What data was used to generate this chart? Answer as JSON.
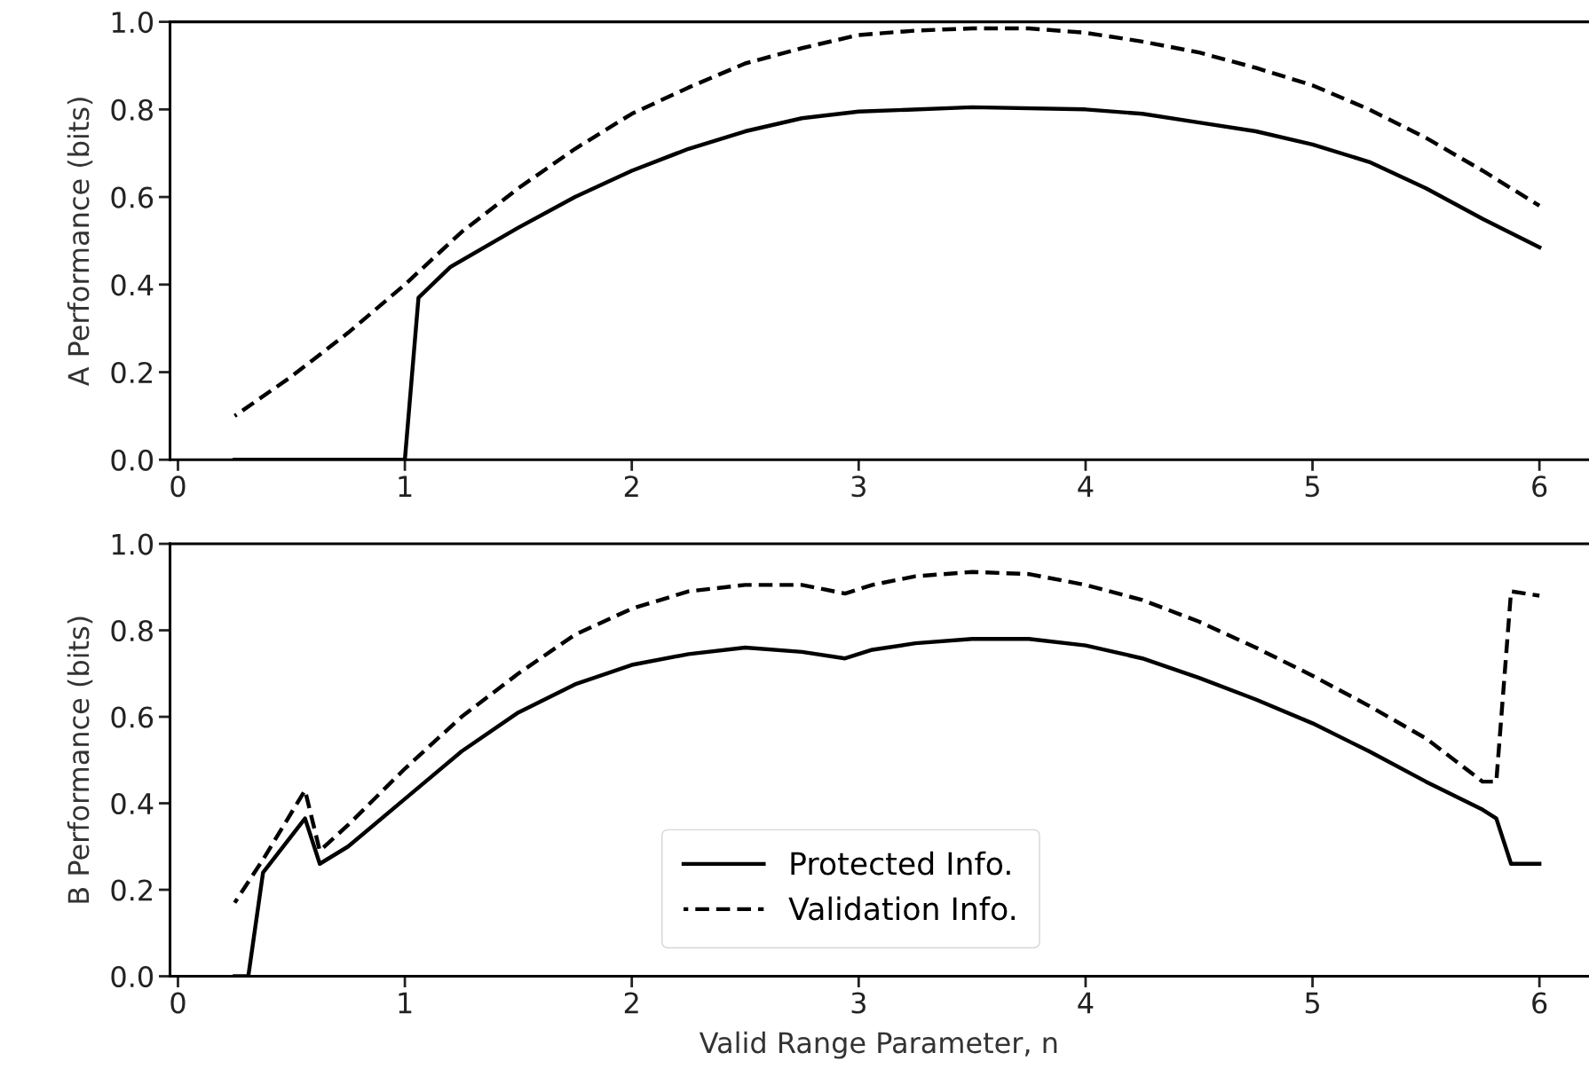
{
  "chart_data": [
    {
      "type": "line",
      "ylabel": "A Performance (bits)",
      "xlim": [
        -0.035,
        6.215
      ],
      "ylim": [
        0,
        1.0
      ],
      "xticks": [
        0,
        1,
        2,
        3,
        4,
        5,
        6
      ],
      "yticks": [
        {
          "value": 0,
          "label": "0.0"
        },
        {
          "value": 0.2,
          "label": "0.2"
        },
        {
          "value": 0.4,
          "label": "0.4"
        },
        {
          "value": 0.6,
          "label": "0.6"
        },
        {
          "value": 0.8,
          "label": "0.8"
        },
        {
          "value": 1.0,
          "label": "1.0"
        }
      ],
      "grid": false,
      "legend": false,
      "series": [
        {
          "color": "#000000",
          "line_style": "solid",
          "x": [
            0.25,
            0.5,
            0.75,
            1.0,
            1.06,
            1.2,
            1.5,
            1.75,
            2.0,
            2.25,
            2.5,
            2.75,
            3.0,
            3.5,
            4.0,
            4.25,
            4.5,
            4.75,
            5.0,
            5.25,
            5.5,
            5.75,
            6.0
          ],
          "values": [
            0,
            0,
            0,
            0,
            0.37,
            0.44,
            0.53,
            0.6,
            0.66,
            0.71,
            0.75,
            0.78,
            0.795,
            0.805,
            0.8,
            0.79,
            0.77,
            0.75,
            0.72,
            0.68,
            0.62,
            0.55,
            0.485
          ]
        },
        {
          "color": "#000000",
          "line_style": "dashed",
          "x": [
            0.25,
            0.5,
            0.75,
            1.0,
            1.25,
            1.5,
            1.75,
            2.0,
            2.25,
            2.5,
            2.75,
            3.0,
            3.25,
            3.5,
            3.75,
            4.0,
            4.25,
            4.5,
            4.75,
            5.0,
            5.25,
            5.5,
            5.75,
            6.0
          ],
          "values": [
            0.1,
            0.19,
            0.29,
            0.4,
            0.52,
            0.62,
            0.71,
            0.79,
            0.85,
            0.905,
            0.94,
            0.97,
            0.98,
            0.985,
            0.985,
            0.975,
            0.955,
            0.93,
            0.895,
            0.855,
            0.8,
            0.735,
            0.66,
            0.58
          ]
        }
      ]
    },
    {
      "type": "line",
      "ylabel": "B Performance (bits)",
      "xlabel": "Valid Range Parameter, n",
      "xlim": [
        -0.035,
        6.215
      ],
      "ylim": [
        0,
        1.0
      ],
      "xticks": [
        0,
        1,
        2,
        3,
        4,
        5,
        6
      ],
      "yticks": [
        {
          "value": 0,
          "label": "0.0"
        },
        {
          "value": 0.2,
          "label": "0.2"
        },
        {
          "value": 0.4,
          "label": "0.4"
        },
        {
          "value": 0.6,
          "label": "0.6"
        },
        {
          "value": 0.8,
          "label": "0.8"
        },
        {
          "value": 1.0,
          "label": "1.0"
        }
      ],
      "grid": false,
      "legend": "bottom",
      "series": [
        {
          "name": "Protected Info.",
          "color": "#000000",
          "line_style": "solid",
          "x": [
            0.25,
            0.31,
            0.375,
            0.56,
            0.625,
            0.75,
            1.0,
            1.25,
            1.5,
            1.75,
            2.0,
            2.25,
            2.5,
            2.75,
            2.94,
            3.06,
            3.25,
            3.5,
            3.75,
            4.0,
            4.25,
            4.5,
            4.75,
            5.0,
            5.25,
            5.5,
            5.75,
            5.81,
            5.875,
            6.0
          ],
          "values": [
            0,
            0,
            0.24,
            0.365,
            0.26,
            0.3,
            0.41,
            0.52,
            0.61,
            0.675,
            0.72,
            0.745,
            0.76,
            0.75,
            0.735,
            0.755,
            0.77,
            0.78,
            0.78,
            0.765,
            0.735,
            0.69,
            0.64,
            0.585,
            0.52,
            0.45,
            0.385,
            0.365,
            0.26,
            0.26
          ]
        },
        {
          "name": "Validation Info.",
          "color": "#000000",
          "line_style": "dashed",
          "x": [
            0.25,
            0.375,
            0.56,
            0.625,
            0.75,
            1.0,
            1.25,
            1.5,
            1.75,
            2.0,
            2.25,
            2.5,
            2.75,
            2.94,
            3.06,
            3.25,
            3.5,
            3.75,
            4.0,
            4.25,
            4.5,
            4.75,
            5.0,
            5.25,
            5.5,
            5.75,
            5.81,
            5.875,
            6.0
          ],
          "values": [
            0.17,
            0.27,
            0.43,
            0.29,
            0.35,
            0.48,
            0.6,
            0.7,
            0.79,
            0.85,
            0.89,
            0.905,
            0.905,
            0.885,
            0.905,
            0.925,
            0.935,
            0.93,
            0.905,
            0.87,
            0.82,
            0.76,
            0.695,
            0.625,
            0.55,
            0.45,
            0.45,
            0.89,
            0.88
          ]
        }
      ]
    }
  ]
}
